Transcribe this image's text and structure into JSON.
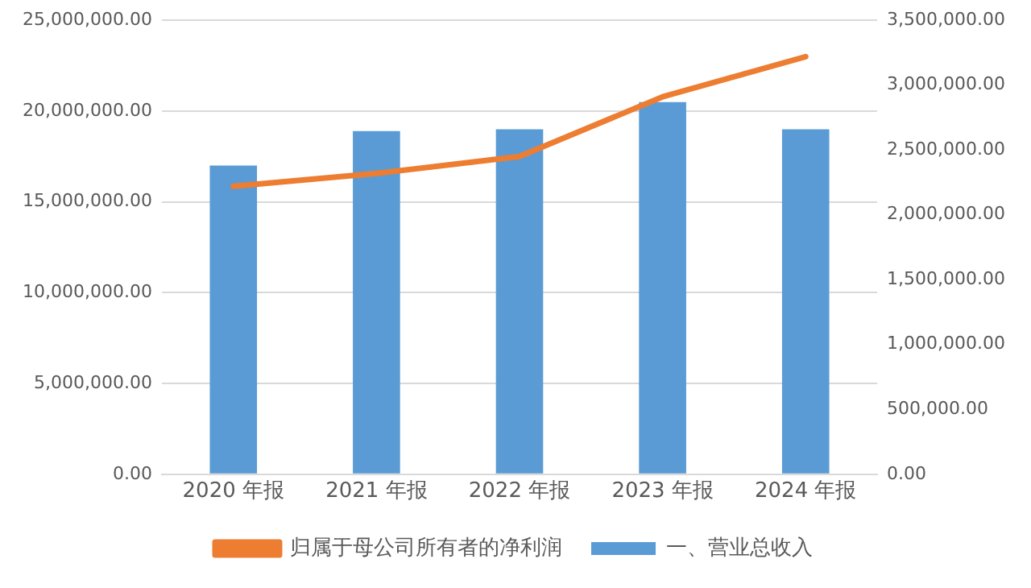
{
  "chart_data": {
    "type": "bar",
    "categories": [
      "2020 年报",
      "2021 年报",
      "2022 年报",
      "2023 年报",
      "2024 年报"
    ],
    "series": [
      {
        "name": "一、营业总收入",
        "color": "#5b9bd5",
        "values": [
          17000000,
          18900000,
          19000000,
          20500000,
          19000000
        ]
      },
      {
        "name": "归属于母公司所有者的净利润",
        "type": "line",
        "axis": "y2",
        "color": "#ed7d31",
        "values": [
          2220000,
          2320000,
          2450000,
          2910000,
          3220000
        ]
      }
    ],
    "ylim": [
      0,
      25000000
    ],
    "yticks": [
      {
        "value": 0,
        "label": "0.00"
      },
      {
        "value": 5000000,
        "label": "5,000,000.00"
      },
      {
        "value": 10000000,
        "label": "10,000,000.00"
      },
      {
        "value": 15000000,
        "label": "15,000,000.00"
      },
      {
        "value": 20000000,
        "label": "20,000,000.00"
      },
      {
        "value": 25000000,
        "label": "25,000,000.00"
      }
    ],
    "y2lim": [
      0,
      3500000
    ],
    "y2ticks": [
      {
        "value": 0,
        "label": "0.00"
      },
      {
        "value": 500000,
        "label": "500,000.00"
      },
      {
        "value": 1000000,
        "label": "1,000,000.00"
      },
      {
        "value": 1500000,
        "label": "1,500,000.00"
      },
      {
        "value": 2000000,
        "label": "2,000,000.00"
      },
      {
        "value": 2500000,
        "label": "2,500,000.00"
      },
      {
        "value": 3000000,
        "label": "3,000,000.00"
      },
      {
        "value": 3500000,
        "label": "3,500,000.00"
      }
    ],
    "grid": "y",
    "legend": "bottom",
    "marker": "none",
    "line_style": "solid"
  }
}
